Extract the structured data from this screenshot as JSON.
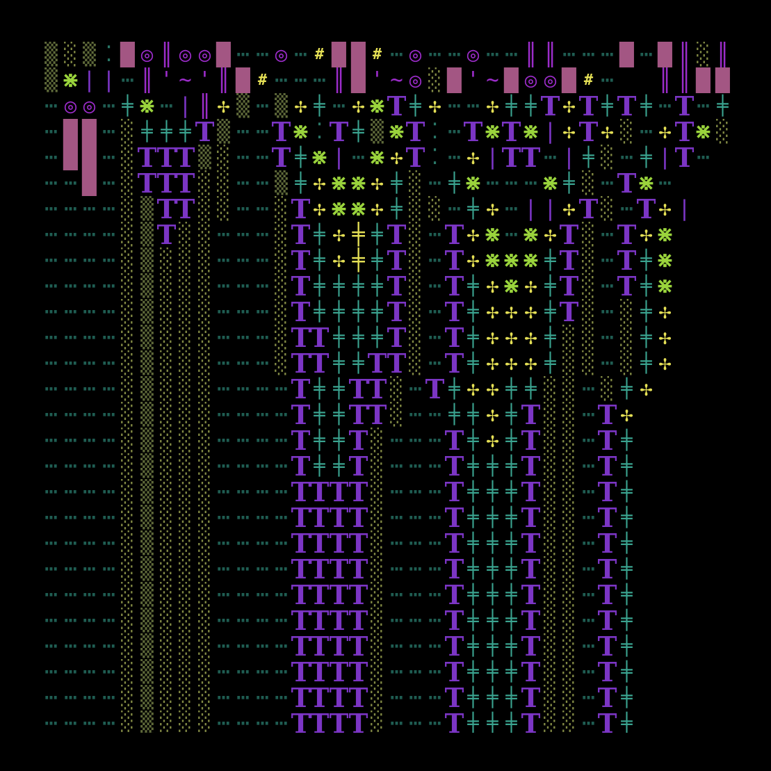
{
  "palette": {
    "background": "#000000",
    "purple": "#7b35c4",
    "violet": "#9b2cc9",
    "magenta": "#a35683",
    "lime": "#9ad43c",
    "yellow": "#e4df55",
    "teal": "#3aa38f",
    "olive_dot": "#828a44",
    "teal_dot": "#2a7767"
  },
  "glyphs": {
    "T": {
      "char": "T",
      "color": "#7b35c4"
    },
    "X": {
      "char": "⋇",
      "color": "#9ad43c"
    },
    "G": {
      "char": "╪",
      "color": "#3aa38f"
    },
    "P": {
      "char": "✢",
      "color": "#e4df55"
    },
    "F": {
      "char": "╪",
      "color": "#e4df55"
    },
    "O": {
      "char": "◎",
      "color": "#9b2cc9"
    },
    "B": {
      "char": "█",
      "color": "#a35683"
    },
    "I": {
      "char": "║",
      "color": "#9b2cc9"
    },
    "L": {
      "char": "|",
      "color": "#7b35c4"
    },
    "H": {
      "char": "#",
      "color": "#e4df55"
    },
    "M": {
      "char": "¨",
      "color": "#9b2cc9"
    },
    "W": {
      "char": "~",
      "color": "#9b2cc9"
    },
    "Q": {
      "char": "'",
      "color": "#9b2cc9"
    },
    "R": {
      "char": "⁚",
      "color": "#2a7767"
    },
    "Y": {
      "char": "░",
      "color": "#828a44"
    },
    "Z": {
      "char": "▒",
      "color": "#5f6a3a"
    },
    ".": {
      "char": "⋯",
      "color": "#1f5d52"
    },
    " ": {
      "char": "",
      "color": "#000000"
    }
  },
  "art_rows": [
    "ZYZRBOIOOB..O.HBBH.O..O..II...B.BIYI",
    "ZXLL.IQWQIBH...IBQWOYBQWBOOBH.  IIBBIO.BOB",
    ".OO.GX.LIPZ.ZPG.PXTGP..PGGTPTGTG.T.GGY",
    ".BB.YGGGTZ..TXRTGZXTR.TXTXLPTPY.PTXY",
    ".BB.YTTTZY..TGXL.XPTR.PLTT.LGY.GLT.",
    "..B.YTTTYY..ZGPXXPGY.GX...XGY.TX.",
    "....YZTTYY..YTPXXPGYY.GP.LLPTY.TPL",
    "....YZTYY...YTGPFGTY.TPX.XPTY.TPX",
    "....YZYYY...YTGPFGTY.TPXXXGTY.TGX",
    "....YZYYY...YTGGGGTY.TGPXPGTY.TGX",
    "....YZYYY...YTGGGGTY.TGPPPGTY.YGP",
    "....YZYYY...YTTGGGTY.TGPPPGYY.YGP",
    "....YZYYY...YTTGGTTY.TGPPPGYY.YGP",
    "....YZYYY....TGGTTY.TGPPGGYY.YGP",
    "....YZYYY....TGGTTY..GGPGTYY.TP",
    "....YZYYY....TGGTY...TGPGTYY.TG",
    "....YZYYY....TGGTY...TGGGTYY.TG",
    "....YZYYY....TTTTY...TGGGTYY.TG",
    "....YZYYY....TTTTY...TGGGTYY.TG",
    "....YZYYY....TTTTY...TGGGTYY.TG",
    "....YZYYY....TTTTY...TGGGTYY.TG",
    "....YZYYY....TTTTY...TGGGTYY.TG",
    "....YZYYY....TTTTY...TGGGTYY.TG",
    "....YZYYY....TTTTY...TGGGTYY.TG",
    "....YZYYY....TTTTY...TGGGTYY.TG",
    "....YZYYY....TTTTY...TGGGTYY.TG",
    "....YZYYY....TTTTY...TGGGTYY.TG",
    "....YZYYY....TTTTY...TGGGTYY.TG"
  ]
}
